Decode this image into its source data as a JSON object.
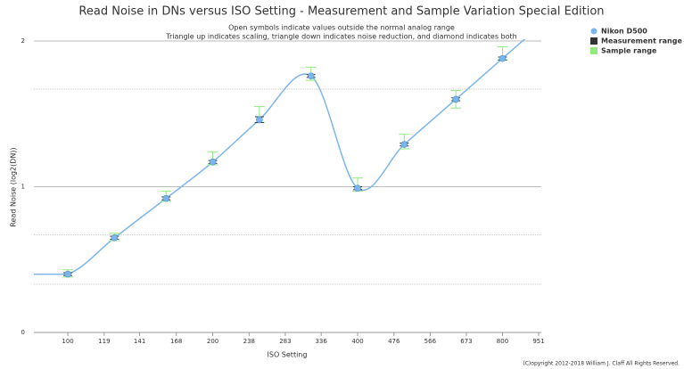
{
  "chart_data": {
    "type": "line",
    "title": "Read Noise in DNs versus ISO Setting - Measurement and Sample Variation Special Edition",
    "subtitle": [
      "Open symbols indicate values outside the normal analog range",
      "Triangle up indicates scaling, triangle down indicates noise reduction, and diamond indicates both"
    ],
    "x_label": "ISO Setting",
    "y_label": "Read Noise (log2(DN))",
    "x_log_base": 2,
    "xlim": [
      85,
      951
    ],
    "xticks": [
      100,
      119,
      141,
      168,
      200,
      238,
      283,
      336,
      400,
      476,
      566,
      673,
      800,
      951
    ],
    "ylim": [
      0,
      2
    ],
    "yticks": [
      0,
      1,
      2
    ],
    "minor_grid": [
      0.33,
      0.67,
      1.67
    ],
    "x": [
      100,
      125,
      160,
      200,
      250,
      320,
      400,
      500,
      640,
      800
    ],
    "series": [
      {
        "name": "Nikon D500",
        "color": "#7cb5ec",
        "values": [
          0.4,
          0.65,
          0.92,
          1.17,
          1.46,
          1.76,
          0.99,
          1.29,
          1.6,
          1.88
        ]
      },
      {
        "name": "Measurement range",
        "color": "#333333",
        "low": [
          0.39,
          0.64,
          0.91,
          1.16,
          1.44,
          1.75,
          0.98,
          1.28,
          1.59,
          1.87
        ],
        "high": [
          0.41,
          0.66,
          0.93,
          1.18,
          1.48,
          1.77,
          1.0,
          1.3,
          1.61,
          1.89
        ]
      },
      {
        "name": "Sample range",
        "color": "#90ed7d",
        "low": [
          0.38,
          0.63,
          0.9,
          1.15,
          1.44,
          1.73,
          0.97,
          1.26,
          1.54,
          1.87
        ],
        "high": [
          0.43,
          0.68,
          0.97,
          1.24,
          1.55,
          1.82,
          1.06,
          1.36,
          1.66,
          1.96
        ]
      }
    ],
    "legend": "top-right",
    "grid": true,
    "credit": "(C)opyright 2012-2018 William J. Claff All Rights Reserved."
  }
}
